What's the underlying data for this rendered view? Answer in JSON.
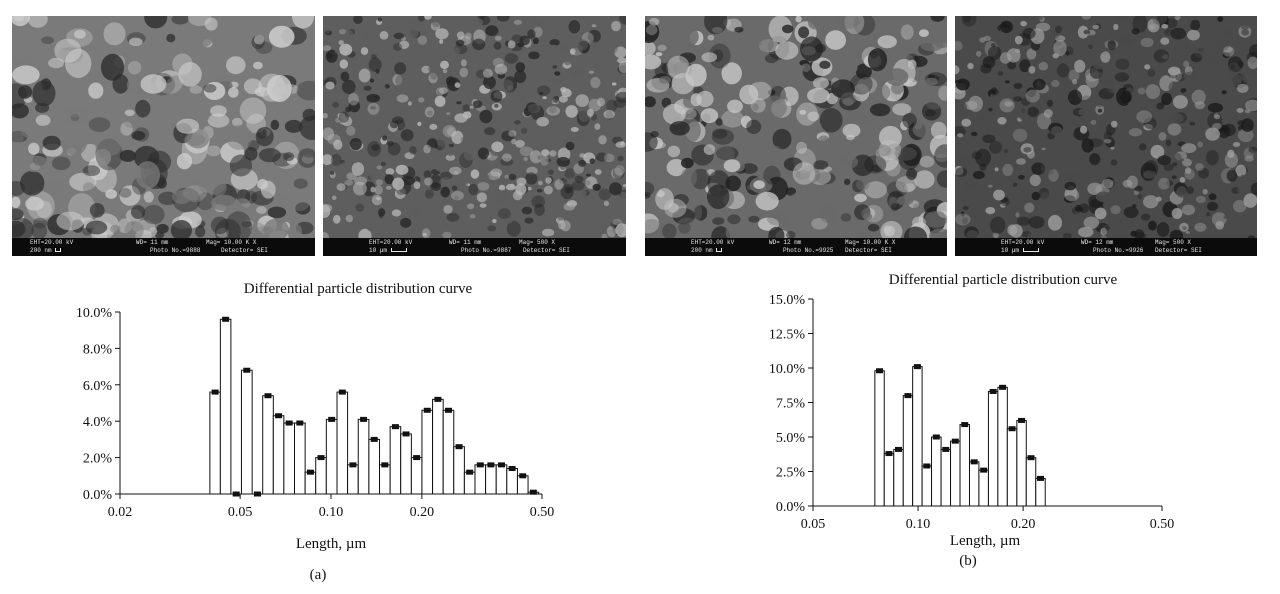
{
  "micrographs": [
    {
      "id": "a-high",
      "row1": [
        "EHT=20.00 kV",
        "WD= 11 mm",
        "Mag= 10.00 K X"
      ],
      "row2": [
        "200 nm",
        "Photo No.=9888",
        "Detector= SEI"
      ]
    },
    {
      "id": "a-low",
      "row1": [
        "EHT=20.00 kV",
        "WD= 11 mm",
        "Mag= 500 X"
      ],
      "row2": [
        "10 µm",
        "Photo No.=9887",
        "Detector= SEI"
      ]
    },
    {
      "id": "b-high",
      "row1": [
        "EHT=20.00 kV",
        "WD= 12 mm",
        "Mag= 10.00 K X"
      ],
      "row2": [
        "200 nm",
        "Photo No.=9925",
        "Detector= SEI"
      ]
    },
    {
      "id": "b-low",
      "row1": [
        "EHT=20.00 kV",
        "WD= 12 mm",
        "Mag= 500 X"
      ],
      "row2": [
        "10 µm",
        "Photo No.=9926",
        "Detector= SEI"
      ]
    }
  ],
  "chart_data": [
    {
      "type": "bar",
      "panel_label": "(a)",
      "title": "Differential particle distribution curve",
      "xlabel": "Length, µm",
      "ylabel": "",
      "x_scale": "log",
      "xlim": [
        0.02,
        0.5
      ],
      "ylim": [
        0,
        10
      ],
      "x_ticks": [
        0.02,
        0.05,
        0.1,
        0.2,
        0.5
      ],
      "x_tick_labels": [
        "0.02",
        "0.05",
        "0.10",
        "0.20",
        "0.50"
      ],
      "y_ticks": [
        0,
        2,
        4,
        6,
        8,
        10
      ],
      "y_tick_labels": [
        "0.0%",
        "2.0%",
        "4.0%",
        "6.0%",
        "8.0%",
        "10.0%"
      ],
      "grid": false,
      "bins": [
        {
          "from": 0.0397,
          "to": 0.043,
          "value": 5.6
        },
        {
          "from": 0.043,
          "to": 0.0466,
          "value": 9.6
        },
        {
          "from": 0.0466,
          "to": 0.0505,
          "value": 0.0
        },
        {
          "from": 0.0505,
          "to": 0.0548,
          "value": 6.8
        },
        {
          "from": 0.0548,
          "to": 0.0594,
          "value": 0.0
        },
        {
          "from": 0.0594,
          "to": 0.0644,
          "value": 5.4
        },
        {
          "from": 0.0644,
          "to": 0.0698,
          "value": 4.3
        },
        {
          "from": 0.0698,
          "to": 0.0757,
          "value": 3.9
        },
        {
          "from": 0.0757,
          "to": 0.0821,
          "value": 3.9
        },
        {
          "from": 0.0821,
          "to": 0.089,
          "value": 1.2
        },
        {
          "from": 0.089,
          "to": 0.0965,
          "value": 2.0
        },
        {
          "from": 0.0965,
          "to": 0.1047,
          "value": 4.1
        },
        {
          "from": 0.1047,
          "to": 0.1135,
          "value": 5.6
        },
        {
          "from": 0.1135,
          "to": 0.1231,
          "value": 1.6
        },
        {
          "from": 0.1231,
          "to": 0.1335,
          "value": 4.1
        },
        {
          "from": 0.1335,
          "to": 0.1448,
          "value": 3.0
        },
        {
          "from": 0.1448,
          "to": 0.157,
          "value": 1.6
        },
        {
          "from": 0.157,
          "to": 0.1702,
          "value": 3.7
        },
        {
          "from": 0.1702,
          "to": 0.1846,
          "value": 3.3
        },
        {
          "from": 0.1846,
          "to": 0.2001,
          "value": 2.0
        },
        {
          "from": 0.2001,
          "to": 0.217,
          "value": 4.6
        },
        {
          "from": 0.217,
          "to": 0.2353,
          "value": 5.2
        },
        {
          "from": 0.2353,
          "to": 0.2551,
          "value": 4.6
        },
        {
          "from": 0.2551,
          "to": 0.2766,
          "value": 2.6
        },
        {
          "from": 0.2766,
          "to": 0.2999,
          "value": 1.2
        },
        {
          "from": 0.2999,
          "to": 0.3252,
          "value": 1.6
        },
        {
          "from": 0.3252,
          "to": 0.3526,
          "value": 1.6
        },
        {
          "from": 0.3526,
          "to": 0.3823,
          "value": 1.6
        },
        {
          "from": 0.3823,
          "to": 0.4146,
          "value": 1.4
        },
        {
          "from": 0.4146,
          "to": 0.4495,
          "value": 1.0
        },
        {
          "from": 0.4495,
          "to": 0.4874,
          "value": 0.1
        }
      ]
    },
    {
      "type": "bar",
      "panel_label": "(b)",
      "title": "Differential particle distribution curve",
      "xlabel": "Length, µm",
      "ylabel": "",
      "x_scale": "log",
      "xlim": [
        0.05,
        0.5
      ],
      "ylim": [
        0,
        15
      ],
      "x_ticks": [
        0.05,
        0.1,
        0.2,
        0.5
      ],
      "x_tick_labels": [
        "0.05",
        "0.10",
        "0.20",
        "0.50"
      ],
      "y_ticks": [
        0,
        2.5,
        5,
        7.5,
        10,
        12.5,
        15
      ],
      "y_tick_labels": [
        "0.0%",
        "2.5%",
        "5.0%",
        "7.5%",
        "10.0%",
        "12.5%",
        "15.0%"
      ],
      "grid": false,
      "bins": [
        {
          "from": 0.0752,
          "to": 0.08,
          "value": 9.8
        },
        {
          "from": 0.08,
          "to": 0.0852,
          "value": 3.8
        },
        {
          "from": 0.0852,
          "to": 0.0907,
          "value": 4.1
        },
        {
          "from": 0.0907,
          "to": 0.0965,
          "value": 8.0
        },
        {
          "from": 0.0965,
          "to": 0.1027,
          "value": 10.1
        },
        {
          "from": 0.1027,
          "to": 0.1093,
          "value": 2.9
        },
        {
          "from": 0.1093,
          "to": 0.1164,
          "value": 5.0
        },
        {
          "from": 0.1164,
          "to": 0.1239,
          "value": 4.1
        },
        {
          "from": 0.1239,
          "to": 0.1319,
          "value": 4.7
        },
        {
          "from": 0.1319,
          "to": 0.1404,
          "value": 5.9
        },
        {
          "from": 0.1404,
          "to": 0.1494,
          "value": 3.2
        },
        {
          "from": 0.1494,
          "to": 0.1591,
          "value": 2.6
        },
        {
          "from": 0.1591,
          "to": 0.1693,
          "value": 8.3
        },
        {
          "from": 0.1693,
          "to": 0.1802,
          "value": 8.6
        },
        {
          "from": 0.1802,
          "to": 0.1919,
          "value": 5.6
        },
        {
          "from": 0.1919,
          "to": 0.2042,
          "value": 6.2
        },
        {
          "from": 0.2042,
          "to": 0.2174,
          "value": 3.5
        },
        {
          "from": 0.2174,
          "to": 0.2314,
          "value": 2.0
        }
      ]
    }
  ]
}
